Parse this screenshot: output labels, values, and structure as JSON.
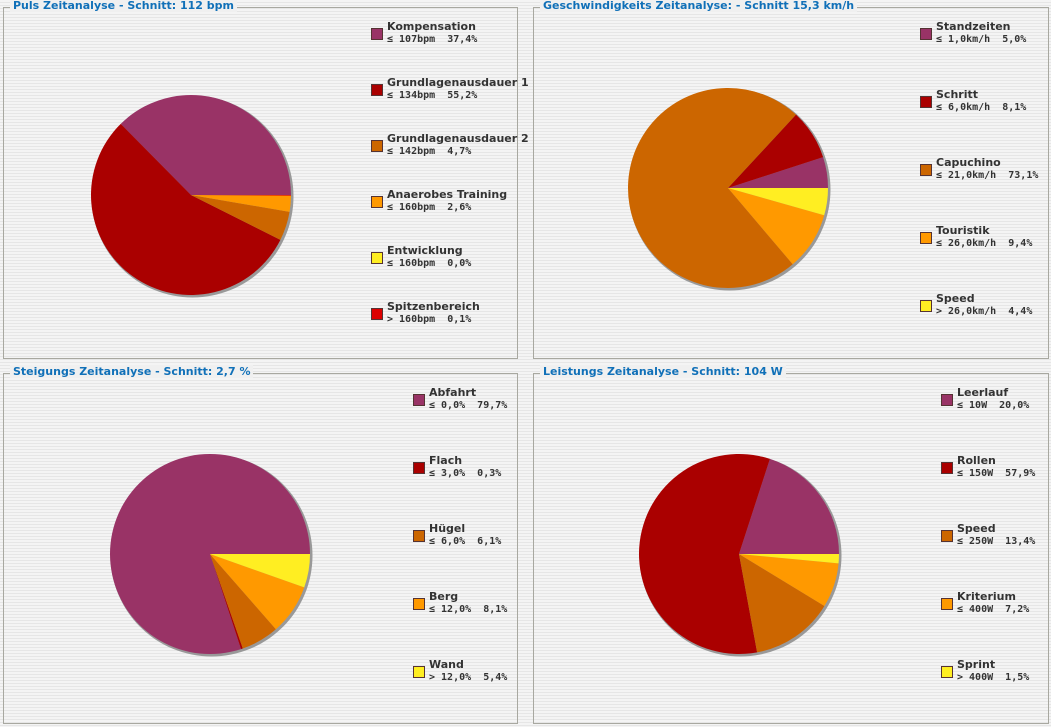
{
  "chart_data": [
    {
      "type": "pie",
      "title": "Puls Zeitanalyse - Schnitt: 112 bpm",
      "slices": [
        {
          "name": "Kompensation",
          "range": "≤ 107bpm",
          "value": 37.4,
          "label": "37,4%",
          "color": "#993366"
        },
        {
          "name": "Grundlagenausdauer 1",
          "range": "≤ 134bpm",
          "value": 55.2,
          "label": "55,2%",
          "color": "#AA0000"
        },
        {
          "name": "Grundlagenausdauer 2",
          "range": "≤ 142bpm",
          "value": 4.7,
          "label": "4,7%",
          "color": "#CC6600"
        },
        {
          "name": "Anaerobes Training",
          "range": "≤ 160bpm",
          "value": 2.6,
          "label": "2,6%",
          "color": "#FF9900"
        },
        {
          "name": "Entwicklung",
          "range": "≤ 160bpm",
          "value": 0.0,
          "label": "0,0%",
          "color": "#FFEE22"
        },
        {
          "name": "Spitzenbereich",
          "range": "> 160bpm",
          "value": 0.1,
          "label": "0,1%",
          "color": "#DD0000"
        }
      ]
    },
    {
      "type": "pie",
      "title": "Geschwindigkeits Zeitanalyse: - Schnitt 15,3 km/h",
      "slices": [
        {
          "name": "Standzeiten",
          "range": "≤ 1,0km/h",
          "value": 5.0,
          "label": "5,0%",
          "color": "#993366"
        },
        {
          "name": "Schritt",
          "range": "≤ 6,0km/h",
          "value": 8.1,
          "label": "8,1%",
          "color": "#AA0000"
        },
        {
          "name": "Capuchino",
          "range": "≤ 21,0km/h",
          "value": 73.1,
          "label": "73,1%",
          "color": "#CC6600"
        },
        {
          "name": "Touristik",
          "range": "≤ 26,0km/h",
          "value": 9.4,
          "label": "9,4%",
          "color": "#FF9900"
        },
        {
          "name": "Speed",
          "range": "> 26,0km/h",
          "value": 4.4,
          "label": "4,4%",
          "color": "#FFEE22"
        }
      ]
    },
    {
      "type": "pie",
      "title": "Steigungs Zeitanalyse - Schnitt: 2,7 %",
      "slices": [
        {
          "name": "Abfahrt",
          "range": "≤ 0,0%",
          "value": 79.7,
          "label": "79,7%",
          "color": "#993366"
        },
        {
          "name": "Flach",
          "range": "≤ 3,0%",
          "value": 0.3,
          "label": "0,3%",
          "color": "#AA0000"
        },
        {
          "name": "Hügel",
          "range": "≤ 6,0%",
          "value": 6.1,
          "label": "6,1%",
          "color": "#CC6600"
        },
        {
          "name": "Berg",
          "range": "≤ 12,0%",
          "value": 8.1,
          "label": "8,1%",
          "color": "#FF9900"
        },
        {
          "name": "Wand",
          "range": "> 12,0%",
          "value": 5.4,
          "label": "5,4%",
          "color": "#FFEE22"
        }
      ]
    },
    {
      "type": "pie",
      "title": "Leistungs Zeitanalyse - Schnitt: 104 W",
      "slices": [
        {
          "name": "Leerlauf",
          "range": "≤ 10W",
          "value": 20.0,
          "label": "20,0%",
          "color": "#993366"
        },
        {
          "name": "Rollen",
          "range": "≤ 150W",
          "value": 57.9,
          "label": "57,9%",
          "color": "#AA0000"
        },
        {
          "name": "Speed",
          "range": "≤ 250W",
          "value": 13.4,
          "label": "13,4%",
          "color": "#CC6600"
        },
        {
          "name": "Kriterium",
          "range": "≤ 400W",
          "value": 7.2,
          "label": "7,2%",
          "color": "#FF9900"
        },
        {
          "name": "Sprint",
          "range": "> 400W",
          "value": 1.5,
          "label": "1,5%",
          "color": "#FFEE22"
        }
      ]
    }
  ]
}
